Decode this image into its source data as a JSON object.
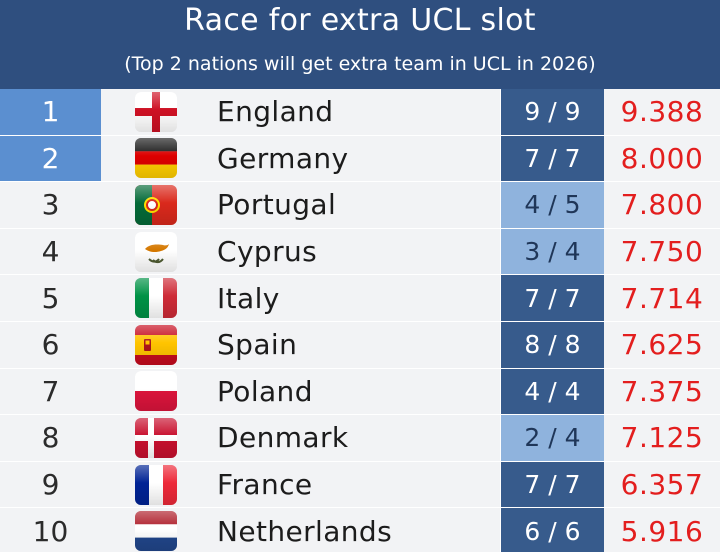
{
  "header": {
    "title": "Race for extra UCL slot",
    "subtitle": "(Top 2 nations will get extra team in UCL in 2026)"
  },
  "colors": {
    "header_bg": "#2f4f7f",
    "qualified_rank_bg": "#5b8fd0",
    "complete_record_bg": "#375b8c",
    "partial_record_bg": "#8fb3dd",
    "points_text": "#e31e1e"
  },
  "rows": [
    {
      "rank": "1",
      "flag": "england-flag",
      "country": "England",
      "record": "9 / 9",
      "points": "9.388",
      "qualified": true,
      "complete": true
    },
    {
      "rank": "2",
      "flag": "germany-flag",
      "country": "Germany",
      "record": "7 / 7",
      "points": "8.000",
      "qualified": true,
      "complete": true
    },
    {
      "rank": "3",
      "flag": "portugal-flag",
      "country": "Portugal",
      "record": "4 / 5",
      "points": "7.800",
      "qualified": false,
      "complete": false
    },
    {
      "rank": "4",
      "flag": "cyprus-flag",
      "country": "Cyprus",
      "record": "3 / 4",
      "points": "7.750",
      "qualified": false,
      "complete": false
    },
    {
      "rank": "5",
      "flag": "italy-flag",
      "country": "Italy",
      "record": "7 / 7",
      "points": "7.714",
      "qualified": false,
      "complete": true
    },
    {
      "rank": "6",
      "flag": "spain-flag",
      "country": "Spain",
      "record": "8 / 8",
      "points": "7.625",
      "qualified": false,
      "complete": true
    },
    {
      "rank": "7",
      "flag": "poland-flag",
      "country": "Poland",
      "record": "4 / 4",
      "points": "7.375",
      "qualified": false,
      "complete": true
    },
    {
      "rank": "8",
      "flag": "denmark-flag",
      "country": "Denmark",
      "record": "2 / 4",
      "points": "7.125",
      "qualified": false,
      "complete": false
    },
    {
      "rank": "9",
      "flag": "france-flag",
      "country": "France",
      "record": "7 / 7",
      "points": "6.357",
      "qualified": false,
      "complete": true
    },
    {
      "rank": "10",
      "flag": "netherlands-flag",
      "country": "Netherlands",
      "record": "6 / 6",
      "points": "5.916",
      "qualified": false,
      "complete": true
    }
  ]
}
